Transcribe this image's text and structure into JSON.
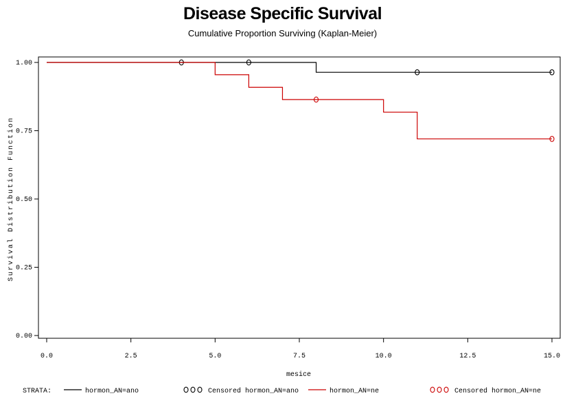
{
  "chart_data": {
    "type": "line",
    "title": "Disease Specific Survival",
    "subtitle": "Cumulative Proportion Surviving (Kaplan-Meier)",
    "xlabel": "mesice",
    "ylabel": "Survival Distribution Function",
    "xlim": [
      0,
      15
    ],
    "ylim": [
      0,
      1
    ],
    "xticks": [
      "0.0",
      "2.5",
      "5.0",
      "7.5",
      "10.0",
      "12.5",
      "15.0"
    ],
    "yticks": [
      "0.00",
      "0.25",
      "0.50",
      "0.75",
      "1.00"
    ],
    "grid": false,
    "legend": {
      "strata_label": "STRATA:",
      "items": [
        {
          "kind": "line",
          "label": "hormon_AN=ano",
          "color": "#000000"
        },
        {
          "kind": "censor",
          "label": "Censored hormon_AN=ano",
          "color": "#000000"
        },
        {
          "kind": "line",
          "label": "hormon_AN=ne",
          "color": "#cc0000"
        },
        {
          "kind": "censor",
          "label": "Censored hormon_AN=ne",
          "color": "#cc0000"
        }
      ]
    },
    "series": [
      {
        "name": "hormon_AN=ano",
        "color": "#000000",
        "steps": [
          [
            0,
            1.0
          ],
          [
            8,
            0.964
          ],
          [
            15,
            0.964
          ]
        ],
        "censored": [
          [
            4,
            1.0
          ],
          [
            6,
            1.0
          ],
          [
            11,
            0.964
          ],
          [
            15,
            0.964
          ]
        ]
      },
      {
        "name": "hormon_AN=ne",
        "color": "#cc0000",
        "steps": [
          [
            0,
            1.0
          ],
          [
            5,
            0.955
          ],
          [
            6,
            0.909
          ],
          [
            7,
            0.864
          ],
          [
            10,
            0.818
          ],
          [
            11,
            0.72
          ],
          [
            15,
            0.72
          ]
        ],
        "censored": [
          [
            8,
            0.864
          ],
          [
            15,
            0.72
          ]
        ]
      }
    ]
  }
}
